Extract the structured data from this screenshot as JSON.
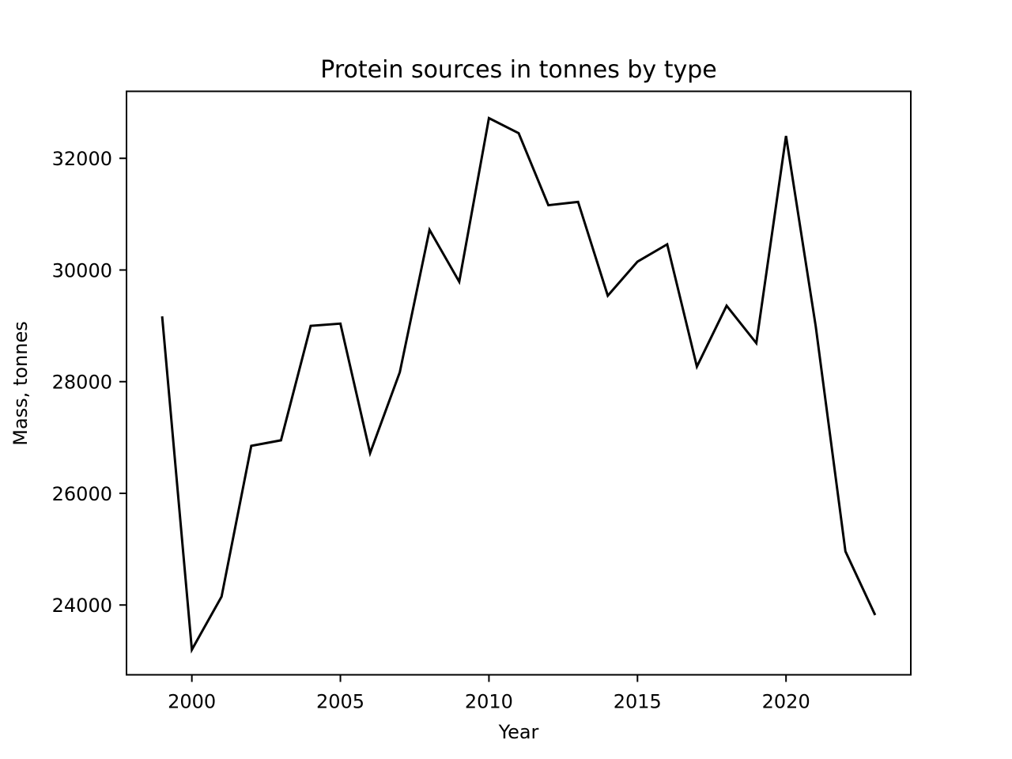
{
  "chart_data": {
    "type": "line",
    "title": "Protein sources in tonnes by type",
    "xlabel": "Year",
    "ylabel": "Mass, tonnes",
    "xlim": [
      1997.8,
      2024.2
    ],
    "ylim": [
      22750,
      33200
    ],
    "xticks": [
      2000,
      2005,
      2010,
      2015,
      2020
    ],
    "yticks": [
      24000,
      26000,
      28000,
      30000,
      32000
    ],
    "grid": false,
    "legend": "none",
    "series": [
      {
        "color": "#000000",
        "x": [
          1999,
          2000,
          2001,
          2002,
          2003,
          2004,
          2005,
          2006,
          2007,
          2008,
          2009,
          2010,
          2011,
          2012,
          2013,
          2014,
          2015,
          2016,
          2017,
          2018,
          2019,
          2020,
          2021,
          2022,
          2023
        ],
        "y": [
          29170,
          23200,
          24150,
          26850,
          26950,
          29000,
          29040,
          26720,
          28170,
          30720,
          29790,
          32720,
          32450,
          31160,
          31220,
          29540,
          30150,
          30460,
          28270,
          29360,
          28690,
          32400,
          28990,
          24960,
          23820
        ]
      }
    ]
  }
}
